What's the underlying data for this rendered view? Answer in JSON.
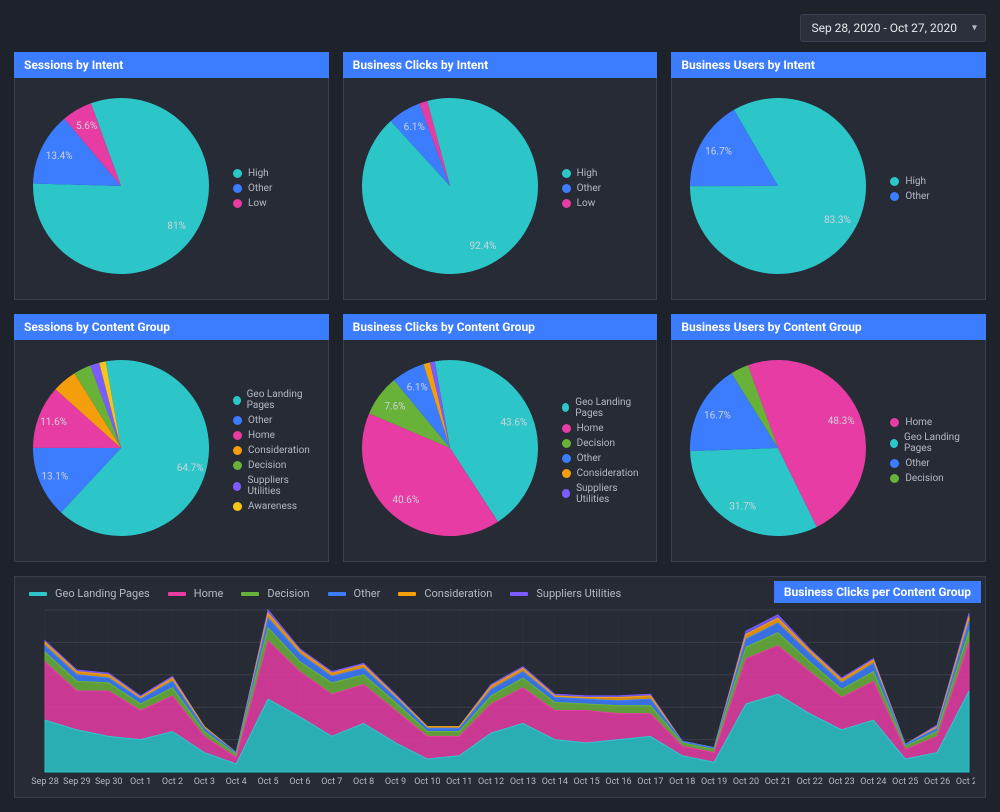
{
  "date_range": "Sep 28, 2020 - Oct 27, 2020",
  "colors": {
    "panel_header": "#3c7cff",
    "panel_bg": "#262b36",
    "page_bg": "#1e222b",
    "grid": "#3a3f4b",
    "text": "#e5e7eb",
    "text_dim": "#b5bac5"
  },
  "series_palette": {
    "teal": "#2cc6c9",
    "blue": "#3c7cff",
    "magenta": "#e63ca3",
    "green": "#69b23a",
    "orange": "#f59e0b",
    "purple": "#7c5cff",
    "yellow": "#f5c518"
  },
  "pies": [
    {
      "id": "sessions-intent",
      "title": "Sessions by Intent",
      "rotation": -20,
      "label_radius": 0.78,
      "slices": [
        {
          "label": "High",
          "value": 81.0,
          "color": "#2cc6c9",
          "show_pct": true
        },
        {
          "label": "Other",
          "value": 13.4,
          "color": "#3c7cff",
          "show_pct": true
        },
        {
          "label": "Low",
          "value": 5.6,
          "color": "#e63ca3",
          "show_pct": true
        }
      ]
    },
    {
      "id": "clicks-intent",
      "title": "Business Clicks by Intent",
      "rotation": -15,
      "label_radius": 0.78,
      "slices": [
        {
          "label": "High",
          "value": 92.4,
          "color": "#2cc6c9",
          "show_pct": true
        },
        {
          "label": "Other",
          "value": 6.1,
          "color": "#3c7cff",
          "show_pct": true
        },
        {
          "label": "Low",
          "value": 1.5,
          "color": "#e63ca3",
          "show_pct": false
        }
      ]
    },
    {
      "id": "users-intent",
      "title": "Business Users by Intent",
      "rotation": -30,
      "label_radius": 0.78,
      "slices": [
        {
          "label": "High",
          "value": 83.3,
          "color": "#2cc6c9",
          "show_pct": true
        },
        {
          "label": "Other",
          "value": 16.7,
          "color": "#3c7cff",
          "show_pct": true
        }
      ]
    },
    {
      "id": "sessions-content",
      "title": "Sessions by Content Group",
      "rotation": -10,
      "label_radius": 0.82,
      "slices": [
        {
          "label": "Geo Landing Pages",
          "value": 64.7,
          "color": "#2cc6c9",
          "show_pct": true
        },
        {
          "label": "Other",
          "value": 13.1,
          "color": "#3c7cff",
          "show_pct": true
        },
        {
          "label": "Home",
          "value": 11.6,
          "color": "#e63ca3",
          "show_pct": true
        },
        {
          "label": "Consideration",
          "value": 4.5,
          "color": "#f59e0b",
          "show_pct": false
        },
        {
          "label": "Decision",
          "value": 3.2,
          "color": "#69b23a",
          "show_pct": false
        },
        {
          "label": "Suppliers Utilities",
          "value": 1.7,
          "color": "#7c5cff",
          "show_pct": false
        },
        {
          "label": "Awareness",
          "value": 1.2,
          "color": "#f5c518",
          "show_pct": false
        }
      ]
    },
    {
      "id": "clicks-content",
      "title": "Business Clicks by Content Group",
      "rotation": -10,
      "label_radius": 0.78,
      "slices": [
        {
          "label": "Geo Landing Pages",
          "value": 43.6,
          "color": "#2cc6c9",
          "show_pct": true
        },
        {
          "label": "Home",
          "value": 40.6,
          "color": "#e63ca3",
          "show_pct": true
        },
        {
          "label": "Decision",
          "value": 7.6,
          "color": "#69b23a",
          "show_pct": true
        },
        {
          "label": "Other",
          "value": 6.1,
          "color": "#3c7cff",
          "show_pct": true
        },
        {
          "label": "Consideration",
          "value": 1.2,
          "color": "#f59e0b",
          "show_pct": false
        },
        {
          "label": "Suppliers Utilities",
          "value": 0.9,
          "color": "#7c5cff",
          "show_pct": false
        }
      ]
    },
    {
      "id": "users-content",
      "title": "Business Users by Content Group",
      "rotation": -20,
      "label_radius": 0.78,
      "slices": [
        {
          "label": "Home",
          "value": 48.3,
          "color": "#e63ca3",
          "show_pct": true
        },
        {
          "label": "Geo Landing Pages",
          "value": 31.7,
          "color": "#2cc6c9",
          "show_pct": true
        },
        {
          "label": "Other",
          "value": 16.7,
          "color": "#3c7cff",
          "show_pct": true
        },
        {
          "label": "Decision",
          "value": 3.3,
          "color": "#69b23a",
          "show_pct": false
        }
      ]
    }
  ],
  "area_chart": {
    "title": "Business Clicks per Content Group",
    "x_labels": [
      "Sep 28",
      "Sep 29",
      "Sep 30",
      "Oct 1",
      "Oct 2",
      "Oct 3",
      "Oct 4",
      "Oct 5",
      "Oct 6",
      "Oct 7",
      "Oct 8",
      "Oct 9",
      "Oct 10",
      "Oct 11",
      "Oct 12",
      "Oct 13",
      "Oct 14",
      "Oct 15",
      "Oct 16",
      "Oct 17",
      "Oct 18",
      "Oct 19",
      "Oct 20",
      "Oct 21",
      "Oct 22",
      "Oct 23",
      "Oct 24",
      "Oct 25",
      "Oct 26",
      "Oct 27"
    ],
    "y_max": 100,
    "grid_step": 20,
    "grid_color": "#3a3f4b",
    "fill_opacity": 0.85,
    "series": [
      {
        "name": "Geo Landing Pages",
        "color": "#2cc6c9",
        "values": [
          32,
          26,
          22,
          20,
          25,
          12,
          5,
          45,
          34,
          22,
          30,
          18,
          8,
          10,
          24,
          30,
          20,
          18,
          20,
          22,
          10,
          6,
          42,
          48,
          36,
          26,
          32,
          8,
          12,
          50
        ]
      },
      {
        "name": "Home",
        "color": "#e63ca3",
        "values": [
          36,
          24,
          28,
          18,
          22,
          10,
          4,
          36,
          28,
          26,
          24,
          20,
          14,
          12,
          18,
          22,
          18,
          20,
          16,
          14,
          6,
          6,
          28,
          30,
          26,
          20,
          24,
          6,
          10,
          30
        ]
      },
      {
        "name": "Decision",
        "color": "#69b23a",
        "values": [
          6,
          6,
          5,
          4,
          5,
          3,
          2,
          8,
          6,
          7,
          6,
          5,
          3,
          3,
          5,
          6,
          5,
          4,
          5,
          5,
          2,
          2,
          7,
          8,
          6,
          5,
          6,
          2,
          3,
          7
        ]
      },
      {
        "name": "Other",
        "color": "#3c7cff",
        "values": [
          4,
          4,
          3,
          3,
          4,
          2,
          1,
          6,
          5,
          4,
          4,
          3,
          2,
          2,
          4,
          4,
          3,
          3,
          3,
          4,
          1,
          1,
          5,
          6,
          5,
          4,
          5,
          1,
          2,
          6
        ]
      },
      {
        "name": "Consideration",
        "color": "#f59e0b",
        "values": [
          2,
          2,
          2,
          1,
          2,
          1,
          0,
          3,
          2,
          2,
          2,
          1,
          1,
          1,
          2,
          2,
          1,
          1,
          2,
          2,
          0,
          0,
          3,
          3,
          2,
          2,
          2,
          0,
          1,
          3
        ]
      },
      {
        "name": "Suppliers Utilities",
        "color": "#7c5cff",
        "values": [
          1,
          1,
          1,
          1,
          1,
          0,
          0,
          2,
          1,
          1,
          1,
          1,
          0,
          0,
          1,
          1,
          1,
          1,
          1,
          1,
          0,
          0,
          2,
          2,
          1,
          1,
          1,
          0,
          1,
          2
        ]
      }
    ]
  }
}
